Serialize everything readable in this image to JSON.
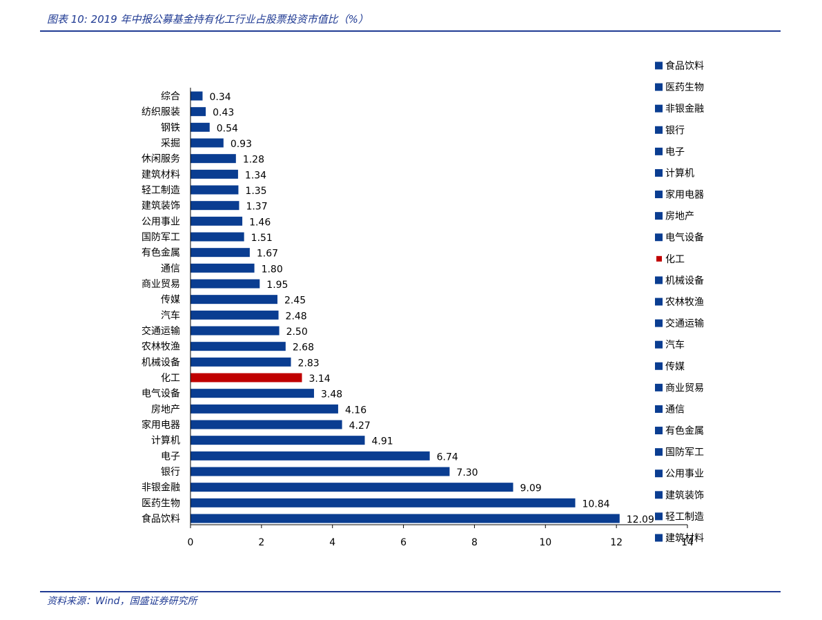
{
  "header": {
    "title": "图表 10: 2019 年中报公募基金持有化工行业占股票投资市值比（%）"
  },
  "footer": {
    "source": "资料来源：Wind，国盛证券研究所"
  },
  "chart_data": {
    "type": "bar",
    "orientation": "horizontal",
    "title": "",
    "xlabel": "",
    "ylabel": "",
    "xlim": [
      0,
      14
    ],
    "x_ticks": [
      0,
      2,
      4,
      6,
      8,
      10,
      12,
      14
    ],
    "grid": false,
    "legend_position": "right",
    "colors": {
      "default": "#0a3d91",
      "highlight": "#c00000"
    },
    "highlight_category": "化工",
    "categories": [
      "综合",
      "纺织服装",
      "钢铁",
      "采掘",
      "休闲服务",
      "建筑材料",
      "轻工制造",
      "建筑装饰",
      "公用事业",
      "国防军工",
      "有色金属",
      "通信",
      "商业贸易",
      "传媒",
      "汽车",
      "交通运输",
      "农林牧渔",
      "机械设备",
      "化工",
      "电气设备",
      "房地产",
      "家用电器",
      "计算机",
      "电子",
      "银行",
      "非银金融",
      "医药生物",
      "食品饮料"
    ],
    "values": [
      0.34,
      0.43,
      0.54,
      0.93,
      1.28,
      1.34,
      1.35,
      1.37,
      1.46,
      1.51,
      1.67,
      1.8,
      1.95,
      2.45,
      2.48,
      2.5,
      2.68,
      2.83,
      3.14,
      3.48,
      4.16,
      4.27,
      4.91,
      6.74,
      7.3,
      9.09,
      10.84,
      12.09
    ],
    "value_labels": [
      "0.34",
      "0.43",
      "0.54",
      "0.93",
      "1.28",
      "1.34",
      "1.35",
      "1.37",
      "1.46",
      "1.51",
      "1.67",
      "1.80",
      "1.95",
      "2.45",
      "2.48",
      "2.50",
      "2.68",
      "2.83",
      "3.14",
      "3.48",
      "4.16",
      "4.27",
      "4.91",
      "6.74",
      "7.30",
      "9.09",
      "10.84",
      "12.09"
    ],
    "legend": [
      "食品饮料",
      "医药生物",
      "非银金融",
      "银行",
      "电子",
      "计算机",
      "家用电器",
      "房地产",
      "电气设备",
      "化工",
      "机械设备",
      "农林牧渔",
      "交通运输",
      "汽车",
      "传媒",
      "商业贸易",
      "通信",
      "有色金属",
      "国防军工",
      "公用事业",
      "建筑装饰",
      "轻工制造",
      "建筑材料"
    ]
  }
}
